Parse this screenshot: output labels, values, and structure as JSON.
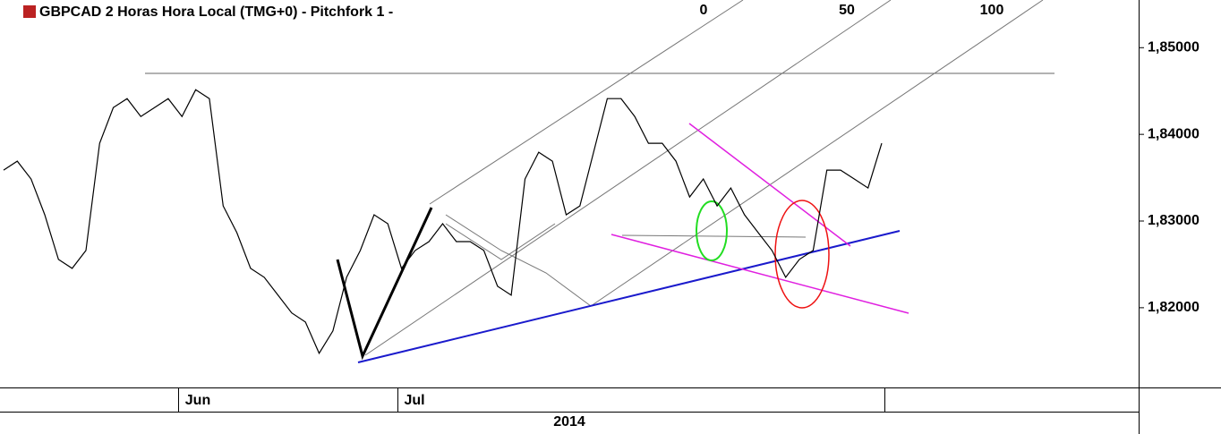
{
  "chart_data": {
    "type": "line",
    "title": "GBPCAD 2 Horas Hora Local (TMG+0)  -  Pitchfork 1 -",
    "fib_labels": [
      "0",
      "50",
      "100"
    ],
    "x_labels": [
      "Jun",
      "Jul"
    ],
    "year": "2014",
    "color": "#000000",
    "values": [
      1.83588,
      1.83691,
      1.83485,
      1.83072,
      1.82557,
      1.82454,
      1.8266,
      1.83897,
      1.84309,
      1.84412,
      1.84206,
      1.84309,
      1.84412,
      1.84206,
      1.84515,
      1.84412,
      1.83175,
      1.82866,
      1.82454,
      1.82351,
      1.82144,
      1.8194,
      1.81835,
      1.81474,
      1.81732,
      1.82351,
      1.8266,
      1.83072,
      1.82969,
      1.82454,
      1.8266,
      1.82763,
      1.82969,
      1.82763,
      1.82763,
      1.8266,
      1.82248,
      1.82144,
      1.83485,
      1.83794,
      1.83691,
      1.83072,
      1.83175,
      1.83794,
      1.84412,
      1.84412,
      1.84206,
      1.83897,
      1.83897,
      1.83691,
      1.83278,
      1.83485,
      1.83175,
      1.83381,
      1.83072,
      1.82866,
      1.8266,
      1.82351,
      1.82557,
      1.8266,
      1.83588,
      1.83588,
      1.83485,
      1.83381,
      1.83897
    ],
    "ylim": [
      1.8108,
      1.8555
    ],
    "yticks": [
      {
        "value": 1.85,
        "label": "1,85000"
      },
      {
        "value": 1.84,
        "label": "1,84000"
      },
      {
        "value": 1.83,
        "label": "1,83000"
      },
      {
        "value": 1.82,
        "label": "1,82000"
      }
    ]
  }
}
